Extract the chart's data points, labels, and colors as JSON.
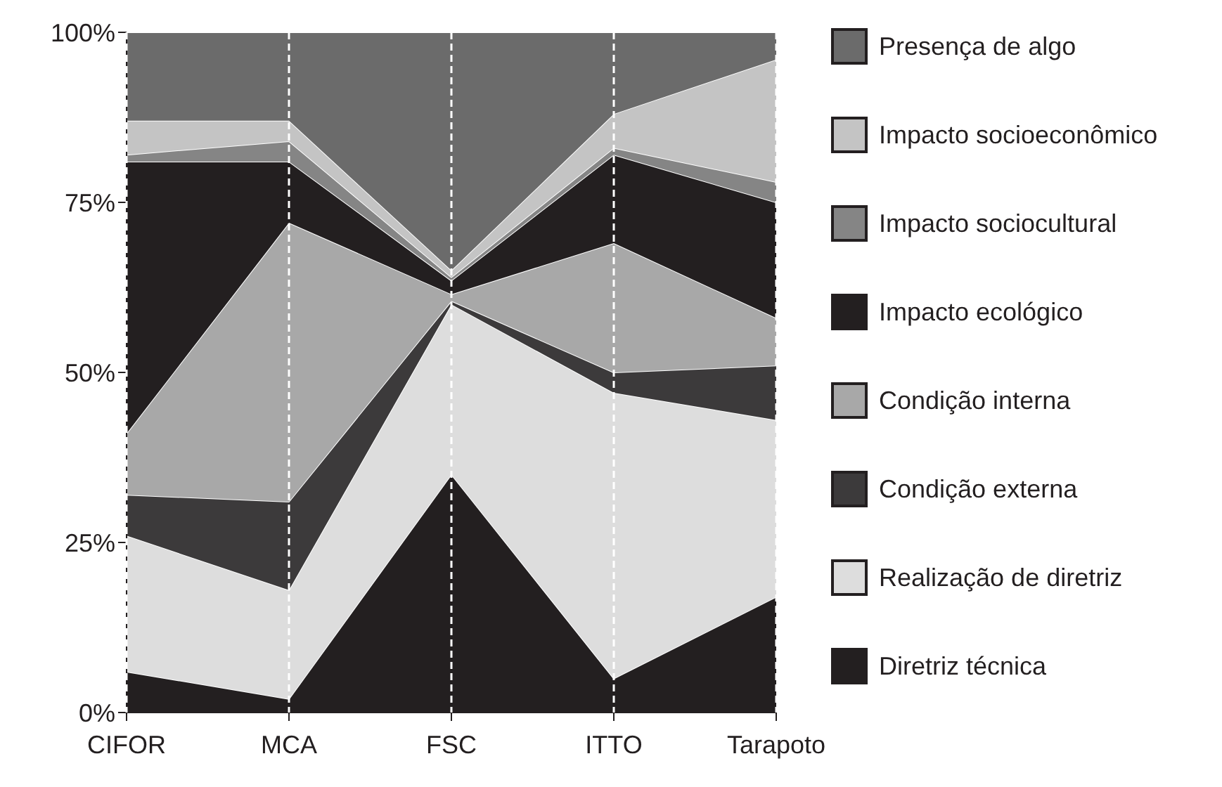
{
  "chart_data": {
    "type": "area",
    "stacked": true,
    "categories": [
      "CIFOR",
      "MCA",
      "FSC",
      "ITTO",
      "Tarapoto"
    ],
    "series": [
      {
        "name": "Diretriz técnica",
        "color": "#231f20",
        "values": [
          6,
          2,
          35,
          5,
          17
        ]
      },
      {
        "name": "Realização de diretriz",
        "color": "#dddddd",
        "values": [
          20,
          16,
          25,
          42,
          26
        ]
      },
      {
        "name": "Condição externa",
        "color": "#3c3a3b",
        "values": [
          6,
          13,
          0.5,
          3,
          8
        ]
      },
      {
        "name": "Condição interna",
        "color": "#a8a8a8",
        "values": [
          9,
          41,
          1,
          19,
          7
        ]
      },
      {
        "name": "Impacto ecológico",
        "color": "#231f20",
        "values": [
          40,
          9,
          2,
          13,
          17
        ]
      },
      {
        "name": "Impacto sociocultural",
        "color": "#858585",
        "values": [
          1,
          3,
          0.5,
          1,
          3
        ]
      },
      {
        "name": "Impacto socioeconômico",
        "color": "#c4c4c4",
        "values": [
          5,
          3,
          1,
          5,
          18
        ]
      },
      {
        "name": "Presença de algo",
        "color": "#6b6b6b",
        "values": [
          13,
          13,
          35,
          12,
          4
        ]
      }
    ],
    "ylim": [
      0,
      100
    ],
    "yticks": [
      {
        "value": 0,
        "label": "0%"
      },
      {
        "value": 25,
        "label": "25%"
      },
      {
        "value": 50,
        "label": "50%"
      },
      {
        "value": 75,
        "label": "75%"
      },
      {
        "value": 100,
        "label": "100%"
      }
    ],
    "grid": "x",
    "legend": "right"
  }
}
